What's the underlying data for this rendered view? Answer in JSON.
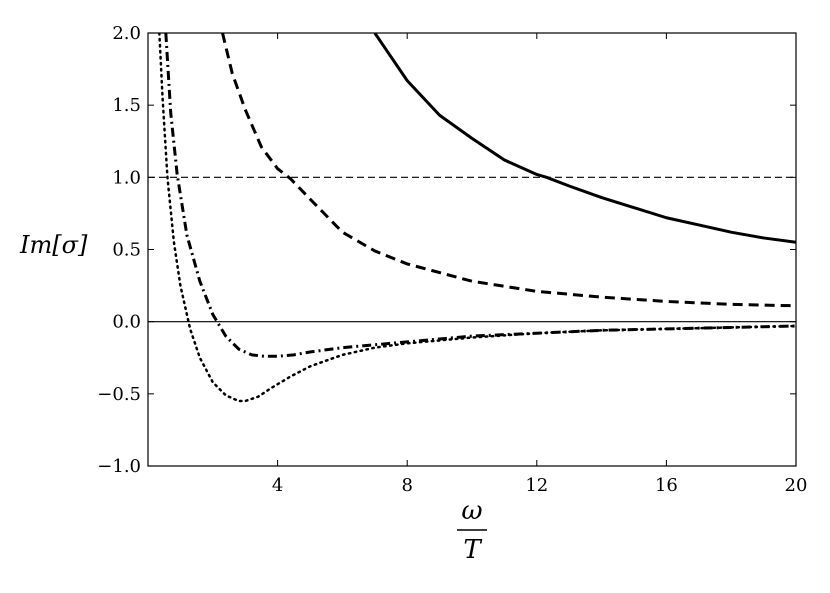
{
  "chart_data": {
    "type": "line",
    "xlabel_numerator": "ω",
    "xlabel_denominator": "T",
    "ylabel": "Im[σ]",
    "xlim": [
      0,
      20
    ],
    "ylim": [
      -1.0,
      2.0
    ],
    "x_ticks": [
      4,
      8,
      12,
      16,
      20
    ],
    "y_ticks": [
      -1.0,
      -0.5,
      0.0,
      0.5,
      1.0,
      1.5,
      2.0
    ],
    "x_tick_labels": [
      "4",
      "8",
      "12",
      "16",
      "20"
    ],
    "y_tick_labels": [
      "−1.0",
      "−0.5",
      "0.0",
      "0.5",
      "1.0",
      "1.5",
      "2.0"
    ],
    "grid": false,
    "reference_lines": [
      {
        "y": 1.0,
        "style": "dashed-thin"
      },
      {
        "y": 0.0,
        "style": "solid-thin"
      }
    ],
    "series": [
      {
        "style": "solid",
        "x": [
          7.0,
          8.0,
          9.0,
          10.0,
          11.0,
          12.0,
          12.3,
          13.0,
          14.0,
          15.0,
          16.0,
          17.0,
          18.0,
          19.0,
          20.0
        ],
        "y": [
          2.0,
          1.67,
          1.43,
          1.27,
          1.12,
          1.02,
          1.0,
          0.94,
          0.86,
          0.79,
          0.72,
          0.67,
          0.62,
          0.58,
          0.55
        ]
      },
      {
        "style": "dashed",
        "x": [
          2.3,
          2.6,
          3.0,
          3.5,
          4.0,
          4.4,
          5.0,
          6.0,
          7.0,
          8.0,
          10.0,
          12.0,
          14.0,
          16.0,
          18.0,
          20.0
        ],
        "y": [
          2.0,
          1.72,
          1.47,
          1.21,
          1.06,
          0.99,
          0.85,
          0.62,
          0.49,
          0.4,
          0.28,
          0.21,
          0.17,
          0.14,
          0.12,
          0.11
        ]
      },
      {
        "style": "dashdot",
        "x": [
          0.55,
          0.7,
          0.9,
          1.2,
          1.6,
          2.0,
          2.4,
          2.8,
          3.2,
          3.6,
          4.0,
          4.5,
          5.0,
          6.0,
          8.0,
          10.0,
          12.0,
          14.0,
          16.0,
          18.0,
          20.0
        ],
        "y": [
          2.0,
          1.45,
          1.02,
          0.6,
          0.28,
          0.05,
          -0.1,
          -0.19,
          -0.23,
          -0.24,
          -0.24,
          -0.23,
          -0.21,
          -0.18,
          -0.14,
          -0.1,
          -0.08,
          -0.06,
          -0.05,
          -0.04,
          -0.03
        ]
      },
      {
        "style": "dotted",
        "x": [
          0.35,
          0.45,
          0.6,
          0.8,
          1.0,
          1.3,
          1.6,
          2.0,
          2.4,
          2.8,
          3.0,
          3.4,
          3.8,
          4.4,
          5.0,
          6.0,
          7.0,
          8.0,
          10.0,
          12.0,
          14.0,
          16.0,
          18.0,
          20.0
        ],
        "y": [
          2.0,
          1.55,
          1.0,
          0.55,
          0.25,
          -0.05,
          -0.25,
          -0.42,
          -0.51,
          -0.55,
          -0.55,
          -0.52,
          -0.46,
          -0.38,
          -0.31,
          -0.23,
          -0.18,
          -0.15,
          -0.11,
          -0.08,
          -0.06,
          -0.05,
          -0.04,
          -0.03
        ]
      }
    ]
  }
}
